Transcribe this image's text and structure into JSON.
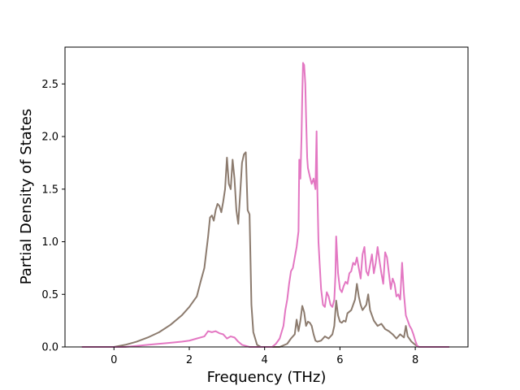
{
  "chart_data": {
    "type": "line",
    "title": "",
    "xlabel": "Frequency (THz)",
    "ylabel": "Partial Density of States",
    "xlim": [
      -1.3,
      9.4
    ],
    "ylim": [
      0,
      2.85
    ],
    "xticks": [
      "0",
      "2",
      "4",
      "6",
      "8"
    ],
    "yticks": [
      "0.0",
      "0.5",
      "1.0",
      "1.5",
      "2.0",
      "2.5"
    ],
    "xtick_values": [
      0,
      2,
      4,
      6,
      8
    ],
    "ytick_values": [
      0,
      0.5,
      1.0,
      1.5,
      2.0,
      2.5
    ],
    "grid": false,
    "legend": "none",
    "series": [
      {
        "color": "#8c7b6e",
        "x": [
          -0.85,
          0.0,
          0.3,
          0.6,
          0.9,
          1.2,
          1.5,
          1.8,
          2.0,
          2.1,
          2.2,
          2.3,
          2.4,
          2.5,
          2.55,
          2.6,
          2.65,
          2.7,
          2.75,
          2.8,
          2.85,
          2.9,
          2.95,
          3.0,
          3.05,
          3.1,
          3.15,
          3.2,
          3.25,
          3.3,
          3.35,
          3.4,
          3.45,
          3.5,
          3.55,
          3.6,
          3.65,
          3.7,
          3.8,
          3.9,
          4.0,
          4.2,
          4.4,
          4.6,
          4.7,
          4.8,
          4.85,
          4.9,
          4.95,
          5.0,
          5.05,
          5.1,
          5.15,
          5.2,
          5.25,
          5.3,
          5.35,
          5.4,
          5.5,
          5.6,
          5.7,
          5.8,
          5.85,
          5.9,
          5.95,
          6.0,
          6.05,
          6.1,
          6.15,
          6.2,
          6.3,
          6.4,
          6.45,
          6.5,
          6.55,
          6.6,
          6.7,
          6.75,
          6.8,
          6.9,
          7.0,
          7.1,
          7.2,
          7.3,
          7.4,
          7.5,
          7.6,
          7.7,
          7.75,
          7.8,
          7.9,
          8.0,
          8.1,
          8.9
        ],
        "y": [
          0.0,
          0.0,
          0.02,
          0.05,
          0.09,
          0.14,
          0.21,
          0.3,
          0.38,
          0.43,
          0.48,
          0.62,
          0.75,
          1.05,
          1.23,
          1.25,
          1.2,
          1.3,
          1.36,
          1.34,
          1.28,
          1.38,
          1.5,
          1.8,
          1.55,
          1.5,
          1.78,
          1.6,
          1.3,
          1.17,
          1.45,
          1.75,
          1.83,
          1.85,
          1.3,
          1.26,
          0.4,
          0.14,
          0.02,
          0.0,
          0.0,
          0.0,
          0.0,
          0.03,
          0.08,
          0.12,
          0.26,
          0.15,
          0.25,
          0.39,
          0.33,
          0.2,
          0.24,
          0.23,
          0.2,
          0.12,
          0.06,
          0.05,
          0.06,
          0.1,
          0.08,
          0.12,
          0.2,
          0.44,
          0.3,
          0.24,
          0.23,
          0.25,
          0.24,
          0.32,
          0.35,
          0.45,
          0.6,
          0.48,
          0.4,
          0.35,
          0.4,
          0.5,
          0.35,
          0.25,
          0.2,
          0.22,
          0.17,
          0.15,
          0.12,
          0.08,
          0.12,
          0.09,
          0.2,
          0.1,
          0.05,
          0.02,
          0.0,
          0.0
        ]
      },
      {
        "color": "#e377c2",
        "x": [
          -0.85,
          0.0,
          0.3,
          0.6,
          0.9,
          1.2,
          1.5,
          1.8,
          2.0,
          2.2,
          2.4,
          2.5,
          2.6,
          2.7,
          2.8,
          2.9,
          3.0,
          3.1,
          3.2,
          3.3,
          3.4,
          3.5,
          3.6,
          3.7,
          3.8,
          3.9,
          4.0,
          4.2,
          4.3,
          4.4,
          4.5,
          4.55,
          4.6,
          4.65,
          4.7,
          4.75,
          4.8,
          4.85,
          4.9,
          4.92,
          4.95,
          4.98,
          5.0,
          5.02,
          5.05,
          5.08,
          5.1,
          5.13,
          5.15,
          5.2,
          5.25,
          5.3,
          5.35,
          5.38,
          5.4,
          5.43,
          5.46,
          5.5,
          5.55,
          5.6,
          5.65,
          5.7,
          5.75,
          5.8,
          5.85,
          5.88,
          5.9,
          5.95,
          6.0,
          6.05,
          6.1,
          6.15,
          6.2,
          6.25,
          6.3,
          6.35,
          6.4,
          6.45,
          6.5,
          6.55,
          6.6,
          6.65,
          6.7,
          6.75,
          6.8,
          6.85,
          6.9,
          6.95,
          7.0,
          7.05,
          7.1,
          7.15,
          7.2,
          7.25,
          7.3,
          7.35,
          7.4,
          7.45,
          7.5,
          7.55,
          7.6,
          7.65,
          7.7,
          7.75,
          7.8,
          7.85,
          7.9,
          7.95,
          8.0,
          8.05,
          8.1,
          8.9
        ],
        "y": [
          0.0,
          0.0,
          0.0,
          0.01,
          0.02,
          0.03,
          0.04,
          0.05,
          0.06,
          0.08,
          0.1,
          0.15,
          0.14,
          0.15,
          0.13,
          0.12,
          0.08,
          0.1,
          0.09,
          0.05,
          0.02,
          0.01,
          0.0,
          0.0,
          0.0,
          0.0,
          0.0,
          0.0,
          0.03,
          0.08,
          0.2,
          0.35,
          0.45,
          0.6,
          0.72,
          0.75,
          0.85,
          0.95,
          1.1,
          1.78,
          1.6,
          2.0,
          2.4,
          2.7,
          2.68,
          2.5,
          2.2,
          1.8,
          1.7,
          1.62,
          1.55,
          1.6,
          1.5,
          2.05,
          1.5,
          1.0,
          0.8,
          0.55,
          0.4,
          0.38,
          0.52,
          0.48,
          0.4,
          0.38,
          0.45,
          0.68,
          1.05,
          0.7,
          0.55,
          0.52,
          0.58,
          0.62,
          0.6,
          0.7,
          0.72,
          0.8,
          0.78,
          0.85,
          0.75,
          0.65,
          0.88,
          0.95,
          0.72,
          0.68,
          0.78,
          0.88,
          0.7,
          0.8,
          0.95,
          0.82,
          0.7,
          0.6,
          0.9,
          0.85,
          0.7,
          0.55,
          0.65,
          0.6,
          0.48,
          0.5,
          0.45,
          0.8,
          0.5,
          0.3,
          0.25,
          0.2,
          0.17,
          0.12,
          0.06,
          0.01,
          0.0,
          0.0
        ]
      }
    ]
  }
}
